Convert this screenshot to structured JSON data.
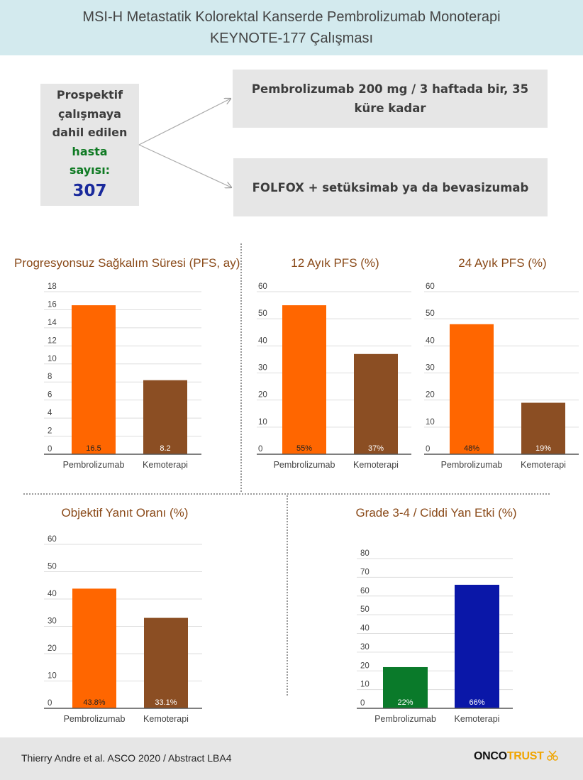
{
  "header": {
    "title_line1": "MSI-H Metastatik Kolorektal Kanserde Pembrolizumab Monoterapi",
    "title_line2": "KEYNOTE-177 Çalışması"
  },
  "enrollment": {
    "line1": "Prospektif",
    "line2": "çalışmaya",
    "line3": "dahil edilen",
    "line4": "hasta",
    "line5": "sayısı:",
    "count": "307"
  },
  "arms": {
    "arm1": "Pembrolizumab 200 mg / 3 haftada bir, 35 küre kadar",
    "arm2": "FOLFOX + setüksimab ya da bevasizumab"
  },
  "colors": {
    "pembrolizumab": "#ff6600",
    "chemotherapy": "#8b4e23",
    "ae_pembrolizumab": "#0a7a2a",
    "ae_chemotherapy": "#0a17a8",
    "title": "#8a4a19",
    "grid": "#dddddd"
  },
  "chart_data": [
    {
      "type": "bar",
      "title": "Progresyonsuz Sağkalım Süresi (PFS, ay)",
      "categories": [
        "Pembrolizumab",
        "Kemoterapi"
      ],
      "values": [
        16.5,
        8.2
      ],
      "data_labels": [
        "16.5",
        "8.2"
      ],
      "ylim": [
        0,
        18
      ],
      "yticks": [
        0,
        2,
        4,
        6,
        8,
        10,
        12,
        14,
        16,
        18
      ],
      "colors": [
        "#ff6600",
        "#8b4e23"
      ],
      "grid": true
    },
    {
      "type": "bar",
      "title": "12 Ayık PFS (%)",
      "categories": [
        "Pembrolizumab",
        "Kemoterapi"
      ],
      "values": [
        55,
        37
      ],
      "data_labels": [
        "55%",
        "37%"
      ],
      "ylim": [
        0,
        60
      ],
      "yticks": [
        0,
        10,
        20,
        30,
        40,
        50,
        60
      ],
      "colors": [
        "#ff6600",
        "#8b4e23"
      ],
      "grid": true
    },
    {
      "type": "bar",
      "title": "24 Ayık PFS (%)",
      "categories": [
        "Pembrolizumab",
        "Kemoterapi"
      ],
      "values": [
        48,
        19
      ],
      "data_labels": [
        "48%",
        "19%"
      ],
      "ylim": [
        0,
        60
      ],
      "yticks": [
        0,
        10,
        20,
        30,
        40,
        50,
        60
      ],
      "colors": [
        "#ff6600",
        "#8b4e23"
      ],
      "grid": true
    },
    {
      "type": "bar",
      "title": "Objektif Yanıt Oranı (%)",
      "categories": [
        "Pembrolizumab",
        "Kemoterapi"
      ],
      "values": [
        43.8,
        33.1
      ],
      "data_labels": [
        "43.8%",
        "33.1%"
      ],
      "ylim": [
        0,
        60
      ],
      "yticks": [
        0,
        10,
        20,
        30,
        40,
        50,
        60
      ],
      "colors": [
        "#ff6600",
        "#8b4e23"
      ],
      "grid": true
    },
    {
      "type": "bar",
      "title": "Grade 3-4 / Ciddi Yan Etki (%)",
      "categories": [
        "Pembrolizumab",
        "Kemoterapi"
      ],
      "values": [
        22,
        66
      ],
      "data_labels": [
        "22%",
        "66%"
      ],
      "ylim": [
        0,
        80
      ],
      "yticks": [
        0,
        10,
        20,
        30,
        40,
        50,
        60,
        70,
        80
      ],
      "colors": [
        "#0a7a2a",
        "#0a17a8"
      ],
      "grid": true
    }
  ],
  "footer": {
    "citation": "Thierry Andre et al. ASCO 2020 / Abstract LBA4",
    "logo_part1": "ONCO",
    "logo_part2": "TRUST"
  }
}
